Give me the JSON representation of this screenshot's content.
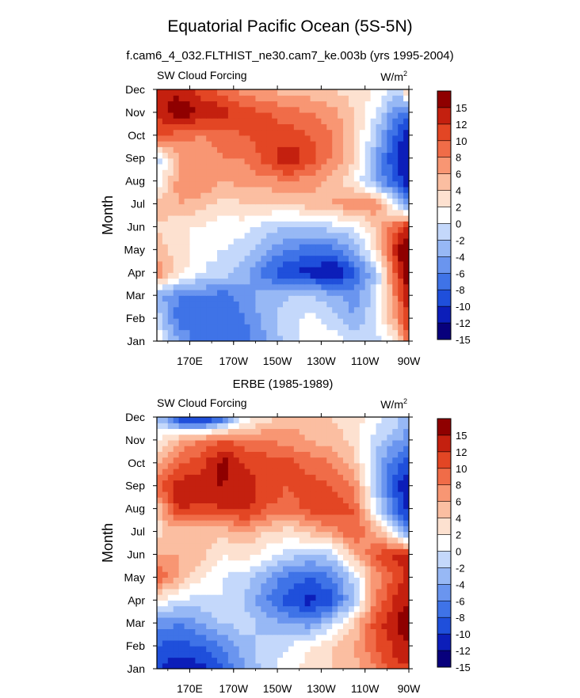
{
  "main_title": "Equatorial Pacific Ocean (5S-5N)",
  "subtitle": "f.cam6_4_032.FLTHIST_ne30.cam7_ke.003b (yrs 1995-2004)",
  "palette": [
    "#08007c",
    "#0c1eb9",
    "#1f4fdb",
    "#3f73e7",
    "#6a95ef",
    "#97b8f5",
    "#c4d8fb",
    "#ffffff",
    "#fde1d0",
    "#fbbea1",
    "#f89673",
    "#f06c48",
    "#e34624",
    "#c4200f",
    "#8f0000"
  ],
  "chart_data": [
    {
      "type": "heatmap",
      "title": "",
      "left_label": "SW Cloud Forcing",
      "units_label": "W/m",
      "units_exponent": "2",
      "ylabel": "Month",
      "xlabel": "",
      "x_ticks": [
        "170E",
        "170W",
        "150W",
        "130W",
        "110W",
        "90W"
      ],
      "x_tick_lon": [
        170,
        190,
        210,
        230,
        250,
        270
      ],
      "xlim_lon": [
        155,
        270
      ],
      "y_ticks": [
        "Jan",
        "Feb",
        "Mar",
        "Apr",
        "May",
        "Jun",
        "Jul",
        "Aug",
        "Sep",
        "Oct",
        "Nov",
        "Dec"
      ],
      "colorbar_labels": [
        "15",
        "12",
        "10",
        "8",
        "6",
        "4",
        "2",
        "0",
        "-2",
        "-4",
        "-6",
        "-8",
        "-10",
        "-12",
        "-15"
      ],
      "levels": [
        -15,
        -12,
        -10,
        -8,
        -6,
        -4,
        -2,
        0,
        2,
        4,
        6,
        8,
        10,
        12,
        15
      ],
      "grid_lon": [
        155,
        165,
        175,
        185,
        195,
        205,
        215,
        225,
        235,
        245,
        255,
        265,
        270
      ],
      "values": [
        [
          0,
          -6,
          -9,
          -8,
          -9,
          -6,
          -3,
          -1,
          -1,
          -2,
          -3,
          1,
          9
        ],
        [
          -3,
          -9,
          -10,
          -10,
          -8,
          -5,
          -3,
          -1,
          -3,
          -6,
          -2,
          5,
          11
        ],
        [
          -5,
          -8,
          -8,
          -9,
          -7,
          -5,
          -4,
          -4,
          -5,
          -7,
          -3,
          7,
          12
        ],
        [
          6,
          1,
          -2,
          -3,
          -5,
          -9,
          -12,
          -13,
          -15,
          -10,
          -4,
          10,
          14
        ],
        [
          3,
          1,
          -1,
          -2,
          -3,
          -6,
          -8,
          -9,
          -9,
          -6,
          1,
          12,
          15
        ],
        [
          2,
          0,
          0,
          -1,
          -1,
          -3,
          -4,
          -4,
          -3,
          -2,
          2,
          8,
          11
        ],
        [
          3,
          4,
          3,
          1,
          2,
          2,
          2,
          3,
          4,
          6,
          6,
          -4,
          -8
        ],
        [
          -2,
          5,
          6,
          4,
          5,
          5,
          6,
          5,
          3,
          0,
          -6,
          -11,
          -14
        ],
        [
          -3,
          4,
          5,
          6,
          6,
          9,
          12,
          9,
          6,
          2,
          -6,
          -13,
          -15
        ],
        [
          8,
          7,
          6,
          7,
          8,
          9,
          9,
          8,
          6,
          2,
          -4,
          -11,
          -13
        ],
        [
          10,
          14,
          12,
          11,
          9,
          8,
          7,
          6,
          5,
          2,
          -2,
          -8,
          -10
        ],
        [
          12,
          11,
          9,
          7,
          5,
          4,
          3,
          3,
          2,
          1,
          0,
          -4,
          6
        ]
      ]
    },
    {
      "type": "heatmap",
      "title": "ERBE (1985-1989)",
      "left_label": "SW Cloud Forcing",
      "units_label": "W/m",
      "units_exponent": "2",
      "ylabel": "Month",
      "xlabel": "",
      "x_ticks": [
        "170E",
        "170W",
        "150W",
        "130W",
        "110W",
        "90W"
      ],
      "x_tick_lon": [
        170,
        190,
        210,
        230,
        250,
        270
      ],
      "xlim_lon": [
        155,
        270
      ],
      "y_ticks": [
        "Jan",
        "Feb",
        "Mar",
        "Apr",
        "May",
        "Jun",
        "Jul",
        "Aug",
        "Sep",
        "Oct",
        "Nov",
        "Dec"
      ],
      "colorbar_labels": [
        "15",
        "12",
        "10",
        "8",
        "6",
        "4",
        "2",
        "0",
        "-2",
        "-4",
        "-6",
        "-8",
        "-10",
        "-12",
        "-15"
      ],
      "levels": [
        -15,
        -12,
        -10,
        -8,
        -6,
        -4,
        -2,
        0,
        2,
        4,
        6,
        8,
        10,
        12,
        15
      ],
      "grid_lon": [
        155,
        165,
        175,
        185,
        195,
        205,
        215,
        225,
        235,
        245,
        255,
        265,
        270
      ],
      "values": [
        [
          -12,
          -14,
          -13,
          -10,
          -6,
          -3,
          -1,
          1,
          2,
          3,
          6,
          10,
          9
        ],
        [
          -10,
          -11,
          -10,
          -8,
          -5,
          -3,
          -2,
          0,
          2,
          4,
          8,
          11,
          12
        ],
        [
          -7,
          -8,
          -6,
          -4,
          -3,
          -5,
          -6,
          -7,
          -3,
          2,
          9,
          12,
          14
        ],
        [
          0,
          -2,
          -3,
          -2,
          -4,
          -8,
          -11,
          -13,
          -11,
          -4,
          6,
          11,
          12
        ],
        [
          8,
          4,
          0,
          -2,
          -3,
          -6,
          -9,
          -10,
          -8,
          -3,
          5,
          9,
          11
        ],
        [
          4,
          4,
          3,
          0,
          1,
          -1,
          -3,
          -4,
          -3,
          3,
          8,
          11,
          10
        ],
        [
          1,
          3,
          2,
          3,
          4,
          2,
          1,
          3,
          5,
          8,
          4,
          -4,
          -8
        ],
        [
          2,
          11,
          9,
          10,
          11,
          8,
          7,
          9,
          9,
          8,
          -2,
          -10,
          -13
        ],
        [
          8,
          11,
          12,
          12,
          11,
          9,
          8,
          9,
          8,
          6,
          -4,
          -12,
          -14
        ],
        [
          3,
          8,
          9,
          13,
          10,
          9,
          9,
          7,
          6,
          3,
          -5,
          -10,
          -11
        ],
        [
          0,
          4,
          6,
          8,
          7,
          6,
          5,
          4,
          3,
          1,
          -3,
          -6,
          -7
        ],
        [
          -4,
          -12,
          -14,
          -10,
          -2,
          1,
          3,
          3,
          2,
          1,
          -1,
          -3,
          -6
        ]
      ]
    }
  ]
}
